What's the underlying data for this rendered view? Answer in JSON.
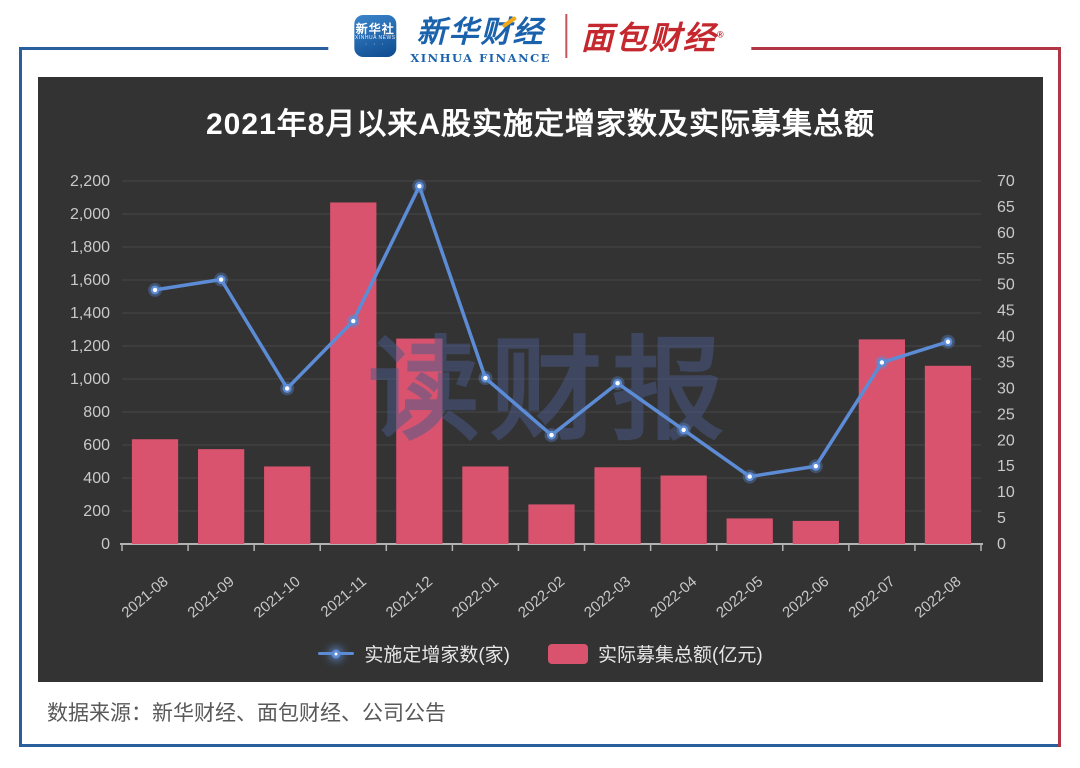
{
  "header": {
    "xinhua_icon": {
      "line1": "新华社",
      "line2": "XINHUA NEWS"
    },
    "xinhua_finance": {
      "cn": "新华财经",
      "en": "XINHUA FINANCE"
    },
    "bread_finance": {
      "cn": "面包财经",
      "reg": "®"
    }
  },
  "chart_data": {
    "type": "combo",
    "title": "2021年8月以来A股实施定增家数及实际募集总额",
    "watermark": "读财报",
    "categories": [
      "2021-08",
      "2021-09",
      "2021-10",
      "2021-11",
      "2021-12",
      "2022-01",
      "2022-02",
      "2022-03",
      "2022-04",
      "2022-05",
      "2022-06",
      "2022-07",
      "2022-08"
    ],
    "series": [
      {
        "name": "实施定增家数(家)",
        "type": "line",
        "axis": "right",
        "color": "#5d8cd6",
        "values": [
          49,
          51,
          30,
          43,
          69,
          32,
          21,
          31,
          22,
          13,
          15,
          35,
          39
        ]
      },
      {
        "name": "实际募集总额(亿元)",
        "type": "bar",
        "axis": "left",
        "color": "#d9536e",
        "values": [
          635,
          575,
          470,
          2070,
          1245,
          470,
          240,
          465,
          415,
          155,
          140,
          1240,
          1080
        ]
      }
    ],
    "left_axis": {
      "min": 0,
      "max": 2200,
      "step": 200,
      "labels": [
        "0",
        "200",
        "400",
        "600",
        "800",
        "1,000",
        "1,200",
        "1,400",
        "1,600",
        "1,800",
        "2,000",
        "2,200"
      ]
    },
    "right_axis": {
      "min": 0,
      "max": 70,
      "step": 5,
      "labels": [
        "0",
        "5",
        "10",
        "15",
        "20",
        "25",
        "30",
        "35",
        "40",
        "45",
        "50",
        "55",
        "60",
        "65",
        "70"
      ]
    },
    "legend_position": "bottom",
    "grid": "horizontal"
  },
  "footer": {
    "source": "数据来源：新华财经、面包财经、公司公告"
  }
}
